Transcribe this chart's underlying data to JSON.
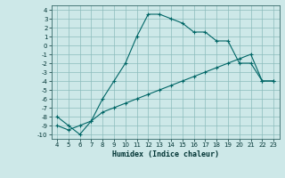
{
  "xlabel": "Humidex (Indice chaleur)",
  "bg_color": "#cde8e8",
  "grid_color": "#8bbcbc",
  "line_color": "#006666",
  "xlim": [
    3.5,
    23.5
  ],
  "ylim": [
    -10.5,
    4.5
  ],
  "xticks": [
    4,
    5,
    6,
    7,
    8,
    9,
    10,
    11,
    12,
    13,
    14,
    15,
    16,
    17,
    18,
    19,
    20,
    21,
    22,
    23
  ],
  "yticks": [
    4,
    3,
    2,
    1,
    0,
    -1,
    -2,
    -3,
    -4,
    -5,
    -6,
    -7,
    -8,
    -9,
    -10
  ],
  "curve1_x": [
    4,
    5,
    6,
    7,
    8,
    9,
    10,
    11,
    12,
    13,
    14,
    15,
    16,
    17,
    18,
    19,
    20,
    21,
    22,
    23
  ],
  "curve1_y": [
    -8.0,
    -9.0,
    -10.0,
    -8.5,
    -6.0,
    -4.0,
    -2.0,
    1.0,
    3.5,
    3.5,
    3.0,
    2.5,
    1.5,
    1.5,
    0.5,
    0.5,
    -2.0,
    -2.0,
    -4.0,
    -4.0
  ],
  "curve2_x": [
    4,
    5,
    6,
    7,
    8,
    9,
    10,
    11,
    12,
    13,
    14,
    15,
    16,
    17,
    18,
    19,
    20,
    21,
    22,
    23
  ],
  "curve2_y": [
    -9.0,
    -9.5,
    -9.0,
    -8.5,
    -7.5,
    -7.0,
    -6.5,
    -6.0,
    -5.5,
    -5.0,
    -4.5,
    -4.0,
    -3.5,
    -3.0,
    -2.5,
    -2.0,
    -1.5,
    -1.0,
    -4.0,
    -4.0
  ]
}
